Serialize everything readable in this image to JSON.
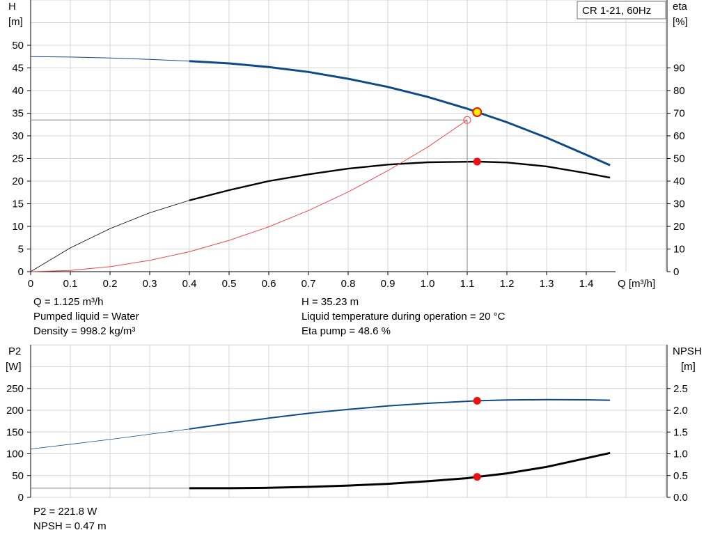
{
  "title_box": "CR 1-21, 60Hz",
  "top_chart": {
    "left_axis": {
      "name": "H",
      "unit": "[m]",
      "ticks": [
        0,
        5,
        10,
        15,
        20,
        25,
        30,
        35,
        40,
        45,
        50
      ]
    },
    "right_axis": {
      "name": "eta",
      "unit": "[%]",
      "ticks": [
        0,
        10,
        20,
        30,
        40,
        50,
        60,
        70,
        80,
        90
      ]
    },
    "x_axis": {
      "label": "Q [m³/h]",
      "ticks": [
        "0",
        "0.1",
        "0.2",
        "0.3",
        "0.4",
        "0.5",
        "0.6",
        "0.7",
        "0.8",
        "0.9",
        "1.0",
        "1.1",
        "1.2",
        "1.3",
        "1.4"
      ]
    }
  },
  "top_info": {
    "col1": [
      "Q = 1.125 m³/h",
      "Pumped liquid = Water",
      "Density = 998.2 kg/m³"
    ],
    "col2": [
      "H = 35.23 m",
      "Liquid temperature during operation = 20 °C",
      "Eta pump = 48.6 %"
    ]
  },
  "bottom_chart": {
    "left_axis": {
      "name": "P2",
      "unit": "[W]",
      "ticks": [
        "0",
        "50",
        "100",
        "150",
        "200",
        "250"
      ]
    },
    "right_axis": {
      "name": "NPSH",
      "unit": "[m]",
      "ticks": [
        "0.0",
        "0.5",
        "1.0",
        "1.5",
        "2.0",
        "2.5"
      ]
    }
  },
  "bottom_info": [
    "P2 = 221.8 W",
    "NPSH = 0.47 m"
  ],
  "colors": {
    "head": "#0d4a86",
    "eta": "#000000",
    "system": "#e84a4a",
    "p2": "#0d4a86",
    "npsh": "#000000",
    "marker": "#ee1111",
    "duty": "#ffee00",
    "grid": "#d4d4d4"
  },
  "chart_data": [
    {
      "type": "line",
      "x_label": "Q [m³/h]",
      "xlim": [
        0,
        1.5
      ],
      "ylim_left": [
        0,
        50
      ],
      "ylim_right": [
        0,
        100
      ],
      "grid": true,
      "series": [
        {
          "name": "H",
          "axis": "left",
          "points": [
            [
              0,
              47.5
            ],
            [
              0.1,
              47.4
            ],
            [
              0.2,
              47.2
            ],
            [
              0.3,
              46.9
            ],
            [
              0.4,
              46.5
            ],
            [
              0.5,
              46.0
            ],
            [
              0.6,
              45.2
            ],
            [
              0.7,
              44.1
            ],
            [
              0.8,
              42.6
            ],
            [
              0.9,
              40.8
            ],
            [
              1.0,
              38.6
            ],
            [
              1.1,
              36.0
            ],
            [
              1.125,
              35.23
            ],
            [
              1.2,
              33.0
            ],
            [
              1.3,
              29.6
            ],
            [
              1.4,
              25.8
            ],
            [
              1.46,
              23.5
            ]
          ]
        },
        {
          "name": "eta",
          "axis": "right",
          "points": [
            [
              0,
              0
            ],
            [
              0.1,
              10.5
            ],
            [
              0.2,
              19
            ],
            [
              0.3,
              26
            ],
            [
              0.4,
              31.5
            ],
            [
              0.5,
              36
            ],
            [
              0.6,
              40
            ],
            [
              0.7,
              43
            ],
            [
              0.8,
              45.5
            ],
            [
              0.9,
              47.3
            ],
            [
              1.0,
              48.3
            ],
            [
              1.075,
              48.5
            ],
            [
              1.125,
              48.6
            ],
            [
              1.2,
              48.2
            ],
            [
              1.3,
              46.5
            ],
            [
              1.4,
              43.5
            ],
            [
              1.46,
              41.5
            ]
          ]
        },
        {
          "name": "system",
          "axis": "left",
          "points": [
            [
              0,
              0
            ],
            [
              0.1,
              0.28
            ],
            [
              0.2,
              1.1
            ],
            [
              0.3,
              2.5
            ],
            [
              0.4,
              4.4
            ],
            [
              0.5,
              6.9
            ],
            [
              0.6,
              9.9
            ],
            [
              0.7,
              13.5
            ],
            [
              0.8,
              17.6
            ],
            [
              0.9,
              22.3
            ],
            [
              1.0,
              27.5
            ],
            [
              1.1,
              33.5
            ]
          ]
        }
      ],
      "duty_point": {
        "Q": 1.125,
        "H": 35.23,
        "eta": 48.6
      }
    },
    {
      "type": "line",
      "xlim": [
        0,
        1.5
      ],
      "ylim_left": [
        0,
        250
      ],
      "ylim_right": [
        0,
        2.5
      ],
      "grid": true,
      "series": [
        {
          "name": "P2",
          "axis": "left",
          "points": [
            [
              0,
              111
            ],
            [
              0.1,
              122
            ],
            [
              0.2,
              133
            ],
            [
              0.3,
              145
            ],
            [
              0.4,
              157
            ],
            [
              0.5,
              170
            ],
            [
              0.6,
              182
            ],
            [
              0.7,
              193
            ],
            [
              0.8,
              202
            ],
            [
              0.9,
              210
            ],
            [
              1.0,
              216
            ],
            [
              1.125,
              221.8
            ],
            [
              1.2,
              223.5
            ],
            [
              1.3,
              224.5
            ],
            [
              1.4,
              224
            ],
            [
              1.46,
              223
            ]
          ]
        },
        {
          "name": "NPSH",
          "axis": "right",
          "points": [
            [
              0.4,
              0.21
            ],
            [
              0.5,
              0.21
            ],
            [
              0.6,
              0.22
            ],
            [
              0.7,
              0.24
            ],
            [
              0.8,
              0.27
            ],
            [
              0.9,
              0.31
            ],
            [
              1.0,
              0.37
            ],
            [
              1.1,
              0.44
            ],
            [
              1.125,
              0.47
            ],
            [
              1.2,
              0.55
            ],
            [
              1.3,
              0.7
            ],
            [
              1.4,
              0.9
            ],
            [
              1.46,
              1.02
            ]
          ]
        }
      ]
    }
  ]
}
